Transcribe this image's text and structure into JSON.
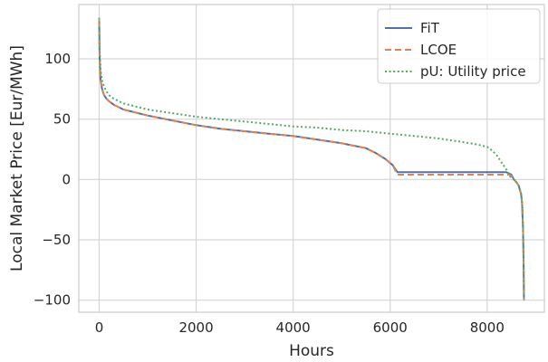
{
  "chart_data": {
    "type": "line",
    "title": "",
    "xlabel": "Hours",
    "ylabel": "Local Market Price [Eur/MWh]",
    "xlim": [
      -420,
      9180
    ],
    "ylim": [
      -110,
      145
    ],
    "xticks": [
      0,
      2000,
      4000,
      6000,
      8000
    ],
    "yticks": [
      -100,
      -50,
      0,
      50,
      100
    ],
    "xtick_labels": [
      "0",
      "2000",
      "4000",
      "6000",
      "8000"
    ],
    "ytick_labels": [
      "−100",
      "−50",
      "0",
      "50",
      "100"
    ],
    "grid": true,
    "legend_position": "top-right",
    "series": [
      {
        "name": "FiT",
        "color": "#4c72b0",
        "style": "solid",
        "x": [
          0,
          10,
          30,
          60,
          100,
          150,
          200,
          300,
          500,
          800,
          1000,
          1500,
          2000,
          2500,
          3000,
          3500,
          4000,
          4500,
          5000,
          5500,
          5700,
          5900,
          6050,
          6100,
          6150,
          6500,
          7000,
          7500,
          8000,
          8350,
          8400,
          8450,
          8500,
          8550,
          8600,
          8650,
          8700,
          8720,
          8740,
          8750,
          8760
        ],
        "y": [
          132,
          100,
          82,
          75,
          70,
          67,
          65,
          62,
          58,
          55,
          53,
          49,
          45,
          42,
          40,
          38,
          36,
          33,
          30,
          26,
          22,
          17,
          12,
          9,
          6,
          6,
          6,
          6,
          6,
          6,
          6,
          5,
          4,
          0,
          -2,
          -5,
          -12,
          -20,
          -40,
          -65,
          -100
        ]
      },
      {
        "name": "LCOE",
        "color": "#dd8452",
        "style": "dashed",
        "x": [
          0,
          10,
          30,
          60,
          100,
          150,
          200,
          300,
          500,
          800,
          1000,
          1500,
          2000,
          2500,
          3000,
          3500,
          4000,
          4500,
          5000,
          5500,
          5700,
          5900,
          6050,
          6100,
          6150,
          6500,
          7000,
          7500,
          8000,
          8350,
          8400,
          8450,
          8500,
          8550,
          8600,
          8650,
          8700,
          8720,
          8740,
          8750,
          8760
        ],
        "y": [
          132,
          100,
          82,
          75,
          70,
          67,
          65,
          62,
          58,
          55,
          53,
          49,
          45,
          42,
          40,
          38,
          36,
          33,
          30,
          26,
          22,
          17,
          12,
          8,
          4,
          4,
          4,
          4,
          4,
          4,
          4,
          4,
          3,
          0,
          -2,
          -5,
          -12,
          -20,
          -40,
          -65,
          -100
        ]
      },
      {
        "name": "pU: Utility price",
        "color": "#55a868",
        "style": "dotted",
        "x": [
          0,
          10,
          30,
          60,
          100,
          150,
          200,
          300,
          500,
          800,
          1000,
          1500,
          2000,
          2500,
          3000,
          3500,
          4000,
          4500,
          5000,
          5500,
          6000,
          6500,
          7000,
          7500,
          7800,
          8000,
          8100,
          8200,
          8300,
          8400,
          8450,
          8500,
          8550,
          8600,
          8650,
          8700,
          8720,
          8740,
          8750,
          8760
        ],
        "y": [
          134,
          108,
          90,
          82,
          77,
          73,
          70,
          67,
          63,
          60,
          58,
          55,
          52,
          50,
          48,
          46,
          44,
          43,
          41,
          40,
          38,
          36,
          34,
          31,
          29,
          27,
          24,
          20,
          14,
          8,
          4,
          1,
          0,
          -2,
          -5,
          -12,
          -20,
          -40,
          -65,
          -100
        ]
      }
    ]
  }
}
